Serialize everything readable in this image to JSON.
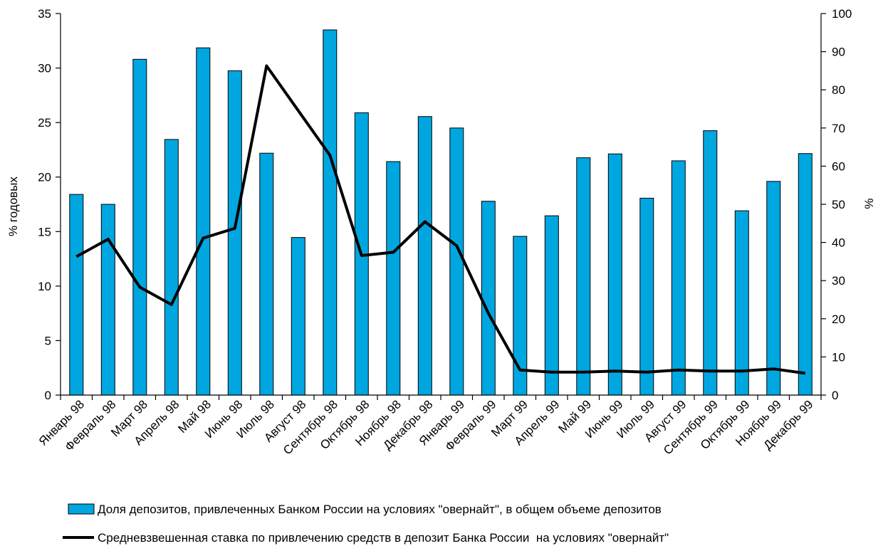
{
  "chart_data": {
    "type": "bar+line",
    "categories": [
      "Январь 98",
      "Февраль 98",
      "Март 98",
      "Апрель 98",
      "Май 98",
      "Июнь 98",
      "Июль 98",
      "Август 98",
      "Сентябрь 98",
      "Октябрь 98",
      "Ноябрь 98",
      "Декабрь 98",
      "Январь 99",
      "Февраль 99",
      "Март 99",
      "Апрель 99",
      "Май 99",
      "Июнь 99",
      "Июль 99",
      "Август 99",
      "Сентябрь 99",
      "Октябрь 99",
      "Ноябрь 99",
      "Декабрь 99"
    ],
    "bar_series": {
      "name": "Доля депозитов, привлеченных Банком России на условиях \"овернайт\", в общем объеме депозитов",
      "axis": "right",
      "color": "#00a6e0",
      "values": [
        52.6,
        50.0,
        88.0,
        67.0,
        91.0,
        85.0,
        63.4,
        41.3,
        95.7,
        74.0,
        61.2,
        73.0,
        70.0,
        50.8,
        41.6,
        47.0,
        62.2,
        63.2,
        51.6,
        61.4,
        69.3,
        48.3,
        56.0,
        63.3
      ]
    },
    "line_series": {
      "name": "Средневзвешенная ставка по привлечению средств в депозит Банка России  на условиях \"овернайт\"",
      "axis": "left",
      "color": "#000000",
      "values": [
        12.7,
        14.3,
        9.9,
        8.3,
        14.4,
        15.3,
        30.2,
        26.1,
        22.0,
        12.8,
        13.1,
        15.9,
        13.7,
        7.5,
        2.3,
        2.1,
        2.1,
        2.2,
        2.1,
        2.3,
        2.2,
        2.2,
        2.4,
        2.0
      ]
    },
    "left_axis": {
      "label": "% годовых",
      "ylim": [
        0,
        35
      ],
      "ticks": [
        0,
        5,
        10,
        15,
        20,
        25,
        30,
        35
      ]
    },
    "right_axis": {
      "label": "%",
      "ylim": [
        0,
        100
      ],
      "ticks": [
        0,
        10,
        20,
        30,
        40,
        50,
        60,
        70,
        80,
        90,
        100
      ]
    },
    "legend": {
      "position": "bottom"
    },
    "grid": false
  }
}
